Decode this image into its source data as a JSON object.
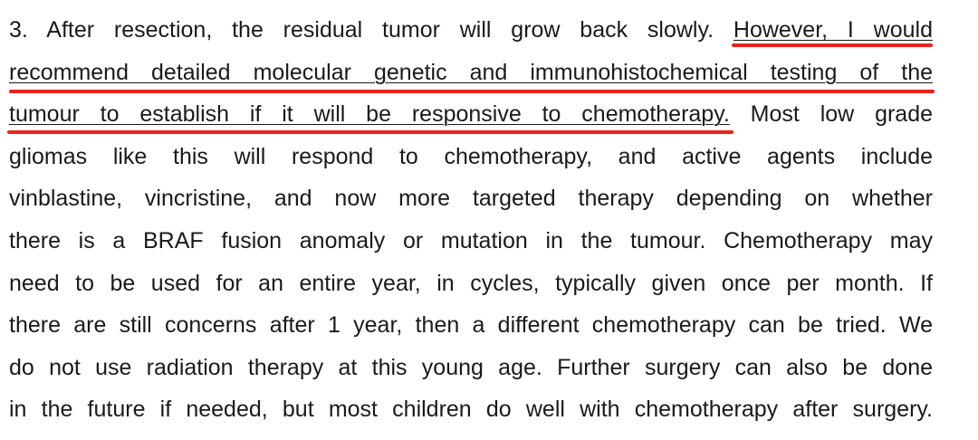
{
  "colors": {
    "underline": "#e8231b",
    "text": "#1a1a1a"
  },
  "paragraph": {
    "lines": [
      {
        "before": "3. After resection, the residual tumor will grow back slowly. ",
        "highlight": "However, I would",
        "after": ""
      },
      {
        "before": "",
        "highlight": "recommend detailed molecular genetic and immunohistochemical testing of the",
        "after": ""
      },
      {
        "before": "",
        "highlight": "tumour to establish if it will be responsive to chemotherapy.",
        "after": " Most low grade"
      },
      {
        "before": "gliomas like this will respond to chemotherapy, and active agents include",
        "highlight": "",
        "after": ""
      },
      {
        "before": "vinblastine, vincristine, and now more targeted therapy depending on whether",
        "highlight": "",
        "after": ""
      },
      {
        "before": "there is a BRAF fusion anomaly or mutation in the tumour. Chemotherapy may",
        "highlight": "",
        "after": ""
      },
      {
        "before": "need to be used for an entire year, in cycles, typically given once per month. If",
        "highlight": "",
        "after": ""
      },
      {
        "before": "there are still concerns after 1 year, then a different chemotherapy can be tried. We",
        "highlight": "",
        "after": ""
      },
      {
        "before": "do not use radiation therapy at this young age. Further surgery can also be done",
        "highlight": "",
        "after": ""
      },
      {
        "before": "in the future if needed, but most children do well with chemotherapy after surgery.",
        "highlight": "",
        "after": ""
      }
    ]
  }
}
